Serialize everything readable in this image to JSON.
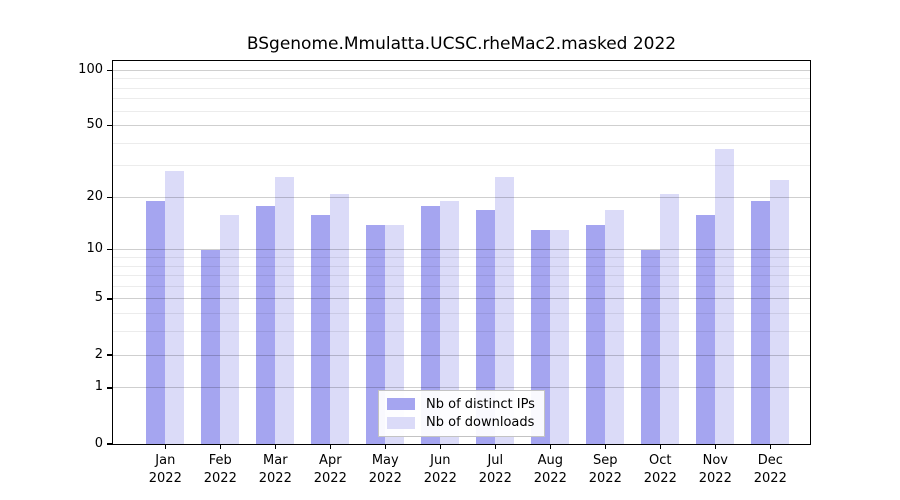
{
  "chart_data": {
    "type": "bar",
    "title": "BSgenome.Mmulatta.UCSC.rheMac2.masked 2022",
    "categories": [
      "Jan 2022",
      "Feb 2022",
      "Mar 2022",
      "Apr 2022",
      "May 2022",
      "Jun 2022",
      "Jul 2022",
      "Aug 2022",
      "Sep 2022",
      "Oct 2022",
      "Nov 2022",
      "Dec 2022"
    ],
    "series": [
      {
        "name": "Nb of distinct IPs",
        "color": "#a5a5f0",
        "values": [
          19,
          10,
          18,
          16,
          14,
          18,
          17,
          13,
          14,
          10,
          16,
          19
        ]
      },
      {
        "name": "Nb of downloads",
        "color": "#dbdbf8",
        "values": [
          28,
          16,
          26,
          21,
          14,
          19,
          26,
          13,
          17,
          21,
          37,
          25
        ]
      }
    ],
    "y_scale": "log1p",
    "ylim": [
      0,
      111
    ],
    "y_tick_labels": [
      "100",
      "50",
      "20",
      "10",
      "5",
      "2",
      "1",
      "0"
    ],
    "y_tick_values": [
      100,
      50,
      20,
      10,
      5,
      2,
      1,
      0
    ],
    "y_minor_gridline_values": [
      3,
      4,
      6,
      7,
      8,
      9,
      30,
      40,
      60,
      70,
      80,
      90
    ],
    "grid": true,
    "legend_position": "bottom-center-inside"
  }
}
